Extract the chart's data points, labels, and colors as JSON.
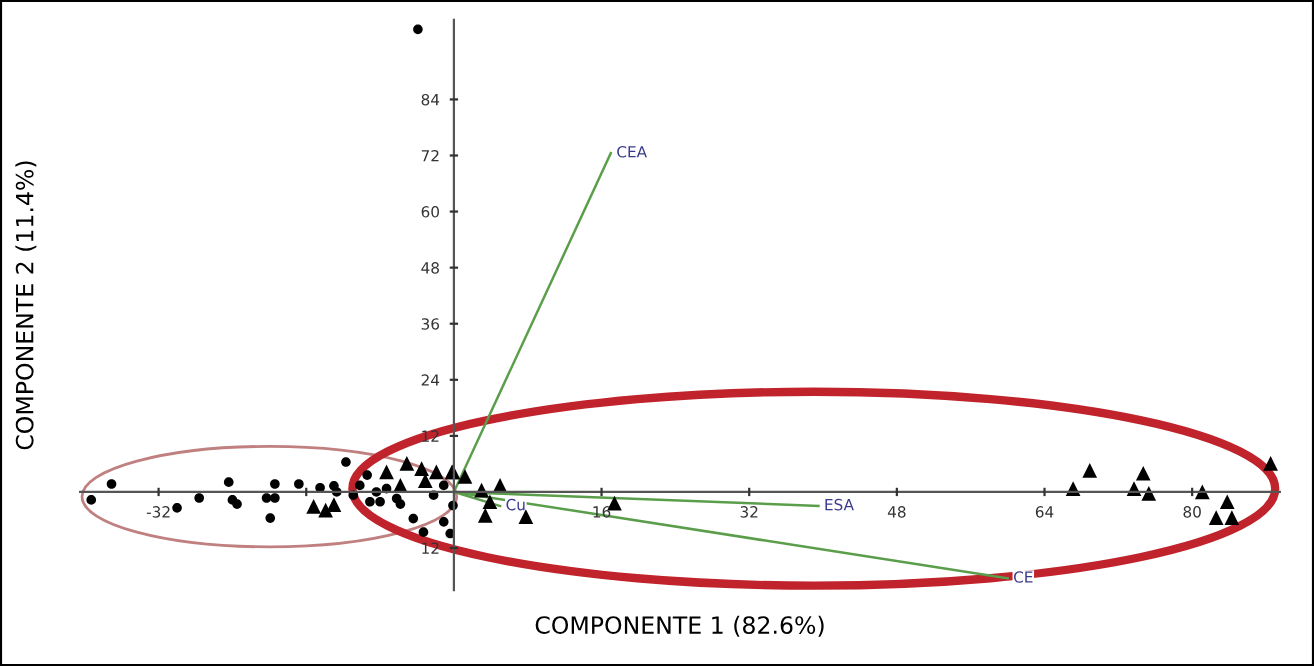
{
  "chart_data": {
    "type": "scatter",
    "xlabel": "COMPONENTE 1 (82.6%)",
    "ylabel": "COMPONENTE 2 (11.4%)",
    "xlim": [
      -40.5,
      89.5
    ],
    "ylim": [
      -21,
      101
    ],
    "xticks": [
      -32,
      {
        "value": -16,
        "label": null
      },
      16,
      32,
      48,
      64,
      80
    ],
    "yticks": [
      {
        "value": -12,
        "label": "12"
      },
      12,
      24,
      36,
      48,
      60,
      72,
      84
    ],
    "grid": false,
    "legend": false,
    "series": [
      {
        "marker": "circle",
        "color": "#000000",
        "x": [
          -39.3,
          -37.1,
          -30,
          -27.6,
          -24.4,
          -24,
          -23.5,
          -20.3,
          -19.9,
          -19.4,
          -19.4,
          -16.8,
          -14.5,
          -13,
          -12.7,
          -11.7,
          -10.9,
          -10.2,
          -9.4,
          -9.1,
          -8.4,
          -8,
          -7.3,
          -6.2,
          -5.8,
          -4.4,
          -3.3,
          -2.2,
          -1.1,
          -1.1,
          -0.4,
          -0.1,
          -3.9
        ],
        "values": [
          -1.7,
          1.7,
          -3.4,
          -1.3,
          2.1,
          -1.7,
          -2.6,
          -1.3,
          -5.6,
          1.7,
          -1.3,
          1.7,
          0.9,
          1.3,
          0,
          6.4,
          -0.7,
          1.4,
          3.6,
          -2.1,
          0,
          -2.1,
          0.7,
          -1.4,
          -2.6,
          -5.7,
          -8.6,
          -0.7,
          1.4,
          -6.4,
          -8.9,
          -2.9,
          99
        ]
      },
      {
        "marker": "triangle",
        "color": "#000000",
        "x": [
          -15.2,
          -13.9,
          -13,
          -7.3,
          -5.1,
          -3.5,
          -3.1,
          -1.9,
          -0.1,
          -5.8,
          -0.2,
          1.2,
          3,
          5,
          3.9,
          3.4,
          7.8,
          17.4,
          67.1,
          68.9,
          73.7,
          74.7,
          75.3,
          81.1,
          83.8,
          82.6,
          84.3,
          88.5
        ],
        "values": [
          -3.1,
          -3.9,
          -2.7,
          4.3,
          6.1,
          5,
          2.4,
          4.3,
          4.3,
          1.4,
          4.3,
          3.3,
          0.4,
          1.4,
          -2.1,
          -5,
          -5.3,
          -2.4,
          0.7,
          4.6,
          0.7,
          4,
          -0.3,
          0,
          -2.1,
          -5.5,
          -5.5,
          6.1
        ]
      },
      {
        "type": "line",
        "name": "CEA",
        "color": "#5a9e4b",
        "x": [
          0,
          17
        ],
        "values": [
          0,
          72.5
        ]
      },
      {
        "type": "line",
        "name": "Cu",
        "color": "#5a9e4b",
        "x": [
          0,
          5
        ],
        "values": [
          0,
          -3
        ]
      },
      {
        "type": "line",
        "name": "ESA",
        "color": "#5a9e4b",
        "x": [
          0,
          39.5
        ],
        "values": [
          0,
          -3
        ]
      },
      {
        "type": "line",
        "name": "CE",
        "color": "#5a9e4b",
        "x": [
          0,
          60
        ],
        "values": [
          0,
          -18.5
        ]
      }
    ]
  }
}
